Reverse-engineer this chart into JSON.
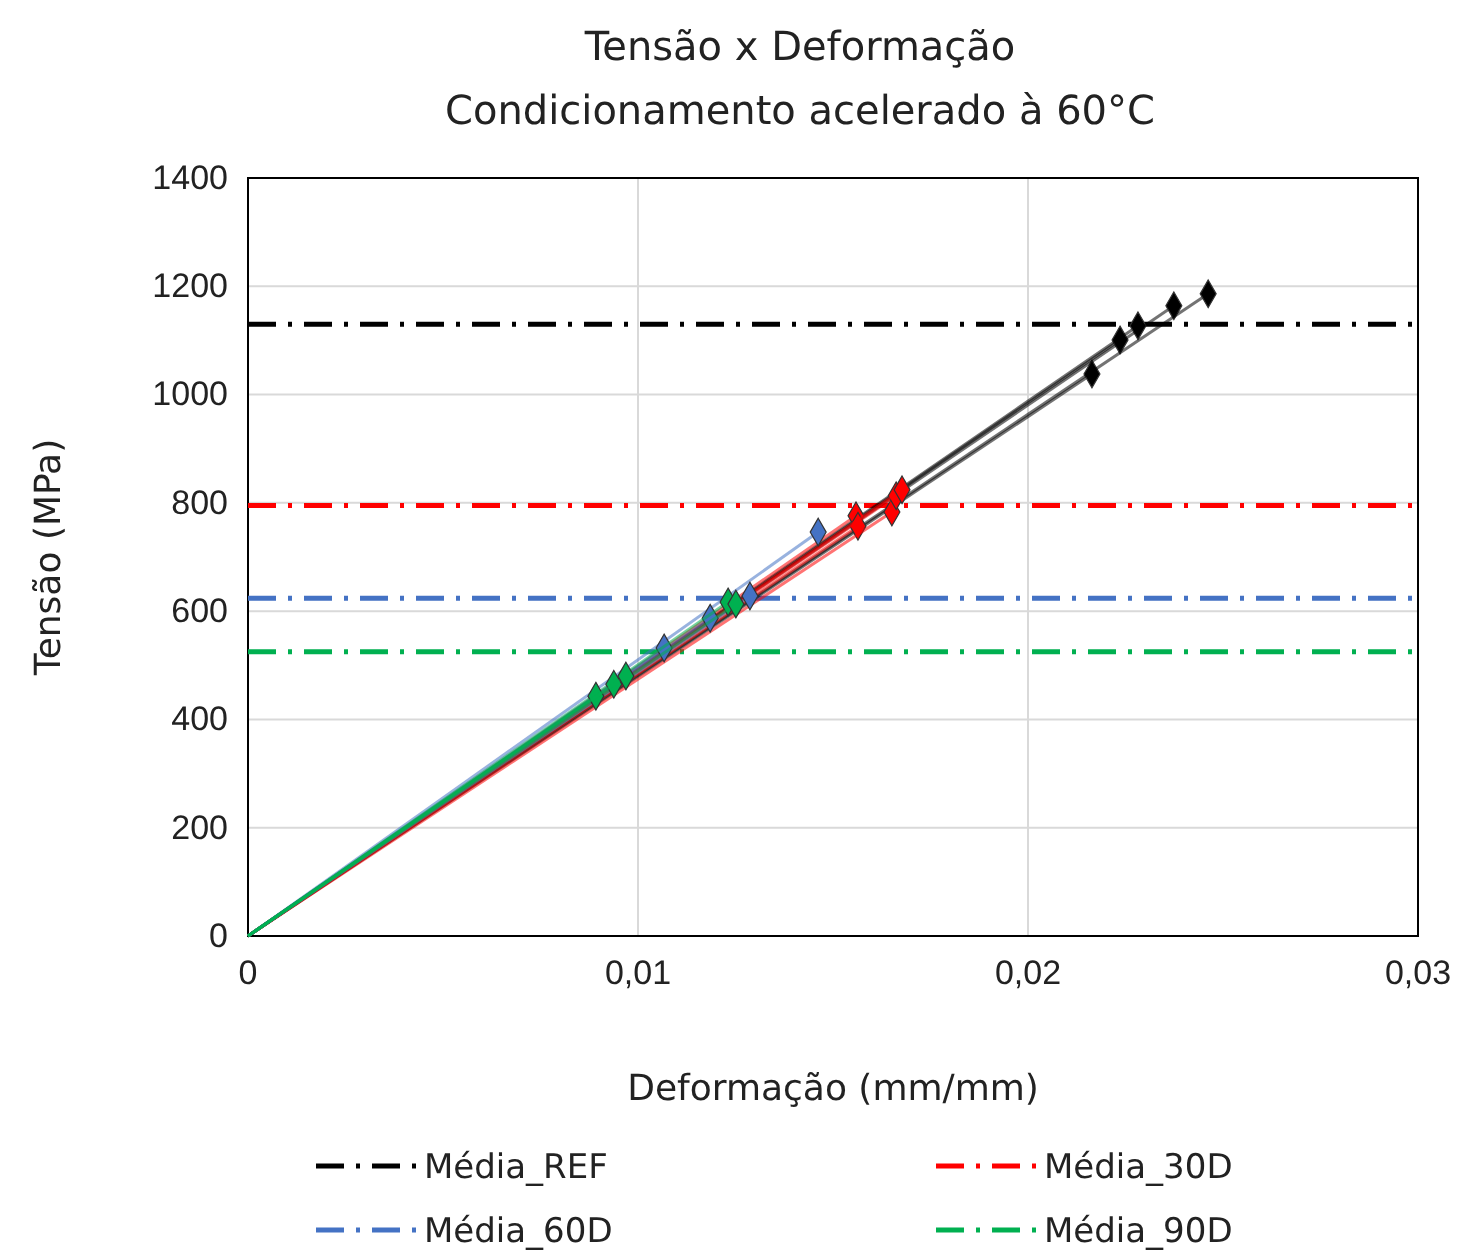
{
  "chart_data": {
    "type": "line",
    "title": "Tensão x Deformação",
    "subtitle": "Condicionamento acelerado à 60°C",
    "xlabel": "Deformação (mm/mm)",
    "ylabel": "Tensão (MPa)",
    "xlim": [
      0,
      0.03
    ],
    "xticks": [
      0,
      {
        "value": 0.01,
        "label": "0,01"
      },
      {
        "value": 0.02,
        "label": "0,02"
      },
      {
        "value": 0.03,
        "label": "0,03"
      }
    ],
    "ylim": [
      0,
      1400
    ],
    "yticks": [
      0,
      200,
      400,
      600,
      800,
      1000,
      1200,
      1400
    ],
    "grid": true,
    "marker": "diamond",
    "legend": "bottom",
    "series": [
      {
        "color": "#000000",
        "x": [
          0,
          0.02164
        ],
        "values": [
          0,
          1038
        ]
      },
      {
        "color": "#000000",
        "x": [
          0,
          0.02236
        ],
        "values": [
          0,
          1101
        ]
      },
      {
        "color": "#000000",
        "x": [
          0,
          0.02282
        ],
        "values": [
          0,
          1127
        ]
      },
      {
        "color": "#000000",
        "x": [
          0,
          0.02374
        ],
        "values": [
          0,
          1164
        ]
      },
      {
        "color": "#000000",
        "x": [
          0,
          0.02462
        ],
        "values": [
          0,
          1186
        ]
      },
      {
        "color": "#ff0000",
        "x": [
          0,
          0.01559
        ],
        "values": [
          0,
          776
        ]
      },
      {
        "color": "#ff0000",
        "x": [
          0,
          0.01564
        ],
        "values": [
          0,
          757
        ]
      },
      {
        "color": "#ff0000",
        "x": [
          0,
          0.01651
        ],
        "values": [
          0,
          783
        ]
      },
      {
        "color": "#ff0000",
        "x": [
          0,
          0.01662
        ],
        "values": [
          0,
          813
        ]
      },
      {
        "color": "#ff0000",
        "x": [
          0,
          0.01677
        ],
        "values": [
          0,
          824
        ]
      },
      {
        "color": "#4472c4",
        "x": [
          0,
          0.01462
        ],
        "values": [
          0,
          746
        ]
      },
      {
        "color": "#4472c4",
        "x": [
          0,
          0.01287
        ],
        "values": [
          0,
          628
        ]
      },
      {
        "color": "#4472c4",
        "x": [
          0,
          0.01185
        ],
        "values": [
          0,
          587
        ]
      },
      {
        "color": "#4472c4",
        "x": [
          0,
          0.01067
        ],
        "values": [
          0,
          532
        ]
      },
      {
        "color": "#00b050",
        "x": [
          0,
          0.01231
        ],
        "values": [
          0,
          617
        ]
      },
      {
        "color": "#00b050",
        "x": [
          0,
          0.01251
        ],
        "values": [
          0,
          613
        ]
      },
      {
        "color": "#00b050",
        "x": [
          0,
          0.00892
        ],
        "values": [
          0,
          443
        ]
      },
      {
        "color": "#00b050",
        "x": [
          0,
          0.00938
        ],
        "values": [
          0,
          465
        ]
      },
      {
        "color": "#00b050",
        "x": [
          0,
          0.00969
        ],
        "values": [
          0,
          480
        ]
      }
    ],
    "ref_lines": [
      {
        "axis": "y",
        "value": 1130,
        "label": "Média_REF",
        "color": "#000000",
        "line_style": "dashed"
      },
      {
        "axis": "y",
        "value": 795,
        "label": "Média_30D",
        "color": "#ff0000",
        "line_style": "dashed"
      },
      {
        "axis": "y",
        "value": 624,
        "label": "Média_60D",
        "color": "#4472c4",
        "line_style": "dashed"
      },
      {
        "axis": "y",
        "value": 525,
        "label": "Média_90D",
        "color": "#00b050",
        "line_style": "dashed"
      }
    ]
  }
}
